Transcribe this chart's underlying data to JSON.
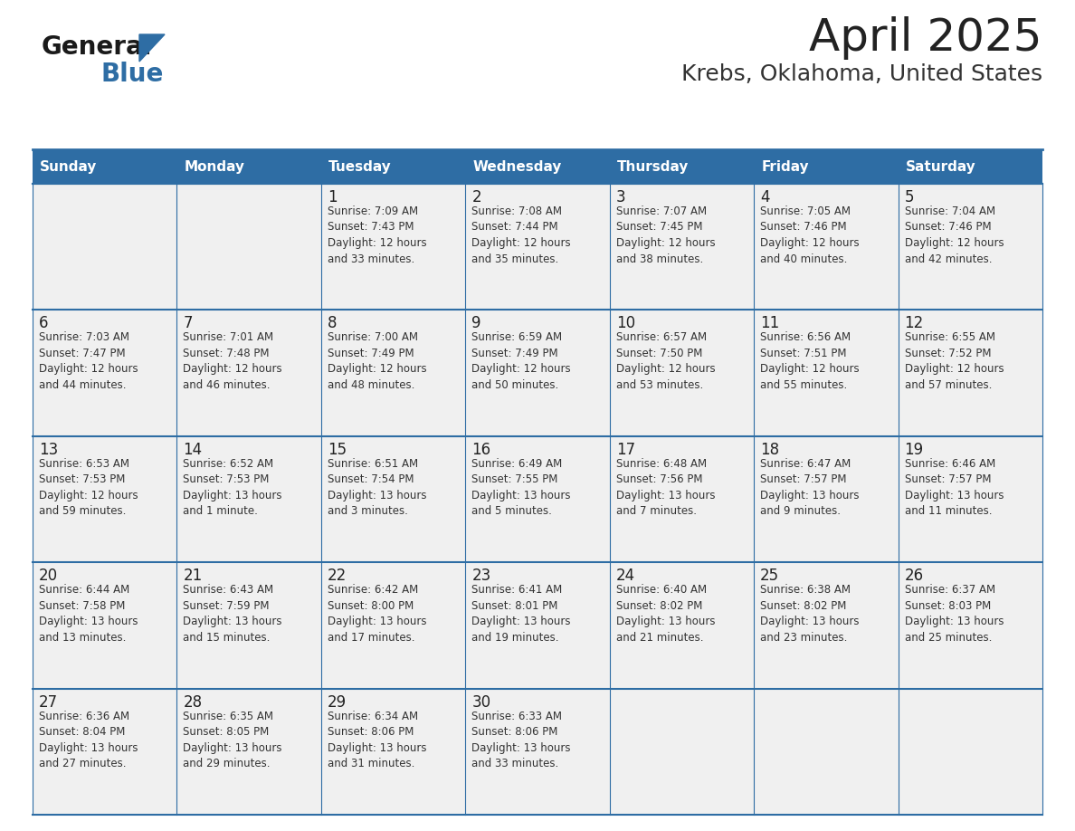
{
  "title": "April 2025",
  "subtitle": "Krebs, Oklahoma, United States",
  "header_bg": "#2E6DA4",
  "header_text_color": "#FFFFFF",
  "cell_bg": "#F0F0F0",
  "day_number_color": "#222222",
  "cell_text_color": "#333333",
  "grid_line_color": "#2E6DA4",
  "title_color": "#222222",
  "subtitle_color": "#333333",
  "logo_general_color": "#1A1A1A",
  "logo_blue_color": "#2E6DA4",
  "logo_triangle_color": "#2E6DA4",
  "days_of_week": [
    "Sunday",
    "Monday",
    "Tuesday",
    "Wednesday",
    "Thursday",
    "Friday",
    "Saturday"
  ],
  "calendar_data": [
    [
      {
        "day": "",
        "info": ""
      },
      {
        "day": "",
        "info": ""
      },
      {
        "day": "1",
        "info": "Sunrise: 7:09 AM\nSunset: 7:43 PM\nDaylight: 12 hours\nand 33 minutes."
      },
      {
        "day": "2",
        "info": "Sunrise: 7:08 AM\nSunset: 7:44 PM\nDaylight: 12 hours\nand 35 minutes."
      },
      {
        "day": "3",
        "info": "Sunrise: 7:07 AM\nSunset: 7:45 PM\nDaylight: 12 hours\nand 38 minutes."
      },
      {
        "day": "4",
        "info": "Sunrise: 7:05 AM\nSunset: 7:46 PM\nDaylight: 12 hours\nand 40 minutes."
      },
      {
        "day": "5",
        "info": "Sunrise: 7:04 AM\nSunset: 7:46 PM\nDaylight: 12 hours\nand 42 minutes."
      }
    ],
    [
      {
        "day": "6",
        "info": "Sunrise: 7:03 AM\nSunset: 7:47 PM\nDaylight: 12 hours\nand 44 minutes."
      },
      {
        "day": "7",
        "info": "Sunrise: 7:01 AM\nSunset: 7:48 PM\nDaylight: 12 hours\nand 46 minutes."
      },
      {
        "day": "8",
        "info": "Sunrise: 7:00 AM\nSunset: 7:49 PM\nDaylight: 12 hours\nand 48 minutes."
      },
      {
        "day": "9",
        "info": "Sunrise: 6:59 AM\nSunset: 7:49 PM\nDaylight: 12 hours\nand 50 minutes."
      },
      {
        "day": "10",
        "info": "Sunrise: 6:57 AM\nSunset: 7:50 PM\nDaylight: 12 hours\nand 53 minutes."
      },
      {
        "day": "11",
        "info": "Sunrise: 6:56 AM\nSunset: 7:51 PM\nDaylight: 12 hours\nand 55 minutes."
      },
      {
        "day": "12",
        "info": "Sunrise: 6:55 AM\nSunset: 7:52 PM\nDaylight: 12 hours\nand 57 minutes."
      }
    ],
    [
      {
        "day": "13",
        "info": "Sunrise: 6:53 AM\nSunset: 7:53 PM\nDaylight: 12 hours\nand 59 minutes."
      },
      {
        "day": "14",
        "info": "Sunrise: 6:52 AM\nSunset: 7:53 PM\nDaylight: 13 hours\nand 1 minute."
      },
      {
        "day": "15",
        "info": "Sunrise: 6:51 AM\nSunset: 7:54 PM\nDaylight: 13 hours\nand 3 minutes."
      },
      {
        "day": "16",
        "info": "Sunrise: 6:49 AM\nSunset: 7:55 PM\nDaylight: 13 hours\nand 5 minutes."
      },
      {
        "day": "17",
        "info": "Sunrise: 6:48 AM\nSunset: 7:56 PM\nDaylight: 13 hours\nand 7 minutes."
      },
      {
        "day": "18",
        "info": "Sunrise: 6:47 AM\nSunset: 7:57 PM\nDaylight: 13 hours\nand 9 minutes."
      },
      {
        "day": "19",
        "info": "Sunrise: 6:46 AM\nSunset: 7:57 PM\nDaylight: 13 hours\nand 11 minutes."
      }
    ],
    [
      {
        "day": "20",
        "info": "Sunrise: 6:44 AM\nSunset: 7:58 PM\nDaylight: 13 hours\nand 13 minutes."
      },
      {
        "day": "21",
        "info": "Sunrise: 6:43 AM\nSunset: 7:59 PM\nDaylight: 13 hours\nand 15 minutes."
      },
      {
        "day": "22",
        "info": "Sunrise: 6:42 AM\nSunset: 8:00 PM\nDaylight: 13 hours\nand 17 minutes."
      },
      {
        "day": "23",
        "info": "Sunrise: 6:41 AM\nSunset: 8:01 PM\nDaylight: 13 hours\nand 19 minutes."
      },
      {
        "day": "24",
        "info": "Sunrise: 6:40 AM\nSunset: 8:02 PM\nDaylight: 13 hours\nand 21 minutes."
      },
      {
        "day": "25",
        "info": "Sunrise: 6:38 AM\nSunset: 8:02 PM\nDaylight: 13 hours\nand 23 minutes."
      },
      {
        "day": "26",
        "info": "Sunrise: 6:37 AM\nSunset: 8:03 PM\nDaylight: 13 hours\nand 25 minutes."
      }
    ],
    [
      {
        "day": "27",
        "info": "Sunrise: 6:36 AM\nSunset: 8:04 PM\nDaylight: 13 hours\nand 27 minutes."
      },
      {
        "day": "28",
        "info": "Sunrise: 6:35 AM\nSunset: 8:05 PM\nDaylight: 13 hours\nand 29 minutes."
      },
      {
        "day": "29",
        "info": "Sunrise: 6:34 AM\nSunset: 8:06 PM\nDaylight: 13 hours\nand 31 minutes."
      },
      {
        "day": "30",
        "info": "Sunrise: 6:33 AM\nSunset: 8:06 PM\nDaylight: 13 hours\nand 33 minutes."
      },
      {
        "day": "",
        "info": ""
      },
      {
        "day": "",
        "info": ""
      },
      {
        "day": "",
        "info": ""
      }
    ]
  ],
  "fig_width": 11.88,
  "fig_height": 9.18,
  "dpi": 100
}
